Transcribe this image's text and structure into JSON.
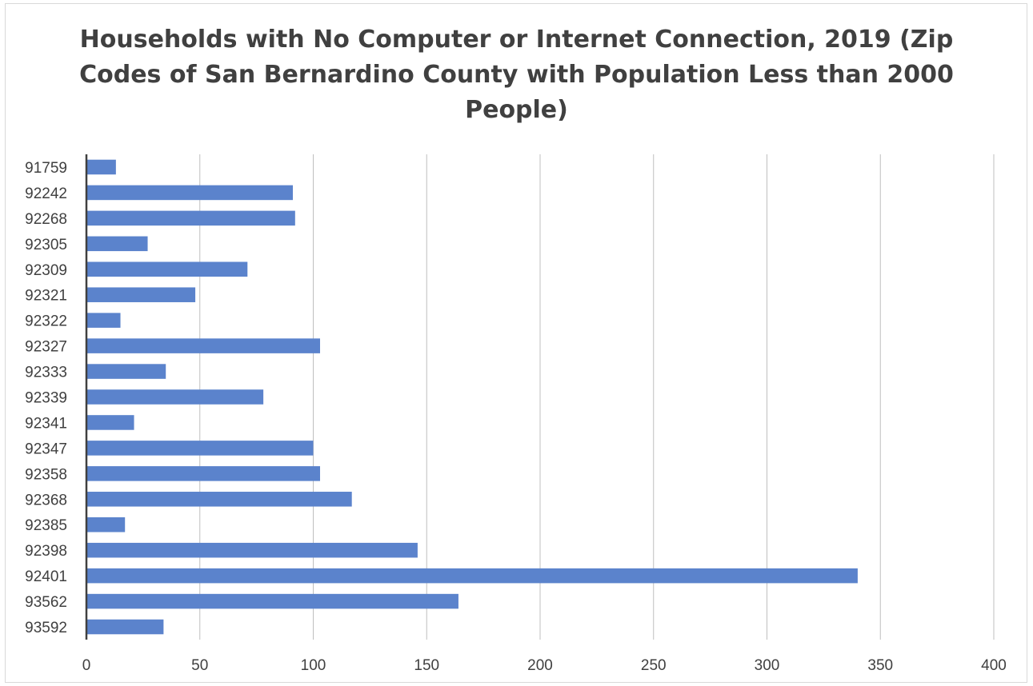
{
  "chart_data": {
    "type": "bar",
    "orientation": "horizontal",
    "title_lines": [
      "Households with No Computer or Internet Connection, 2019 (Zip",
      "Codes of San Bernardino County with Population Less than 2000",
      "People)"
    ],
    "categories": [
      "91759",
      "92242",
      "92268",
      "92305",
      "92309",
      "92321",
      "92322",
      "92327",
      "92333",
      "92339",
      "92341",
      "92347",
      "92358",
      "92368",
      "92385",
      "92398",
      "92401",
      "93562",
      "93592"
    ],
    "values": [
      13,
      91,
      92,
      27,
      71,
      48,
      15,
      103,
      35,
      78,
      21,
      100,
      103,
      117,
      17,
      146,
      340,
      164,
      34
    ],
    "xlim": [
      0,
      400
    ],
    "xticks": [
      "0",
      "50",
      "100",
      "150",
      "200",
      "250",
      "300",
      "350",
      "400"
    ],
    "grid": true,
    "legend": "none",
    "colors": {
      "bar": "#5b83cc",
      "grid": "#bfbfbf",
      "axis": "#404040"
    }
  }
}
